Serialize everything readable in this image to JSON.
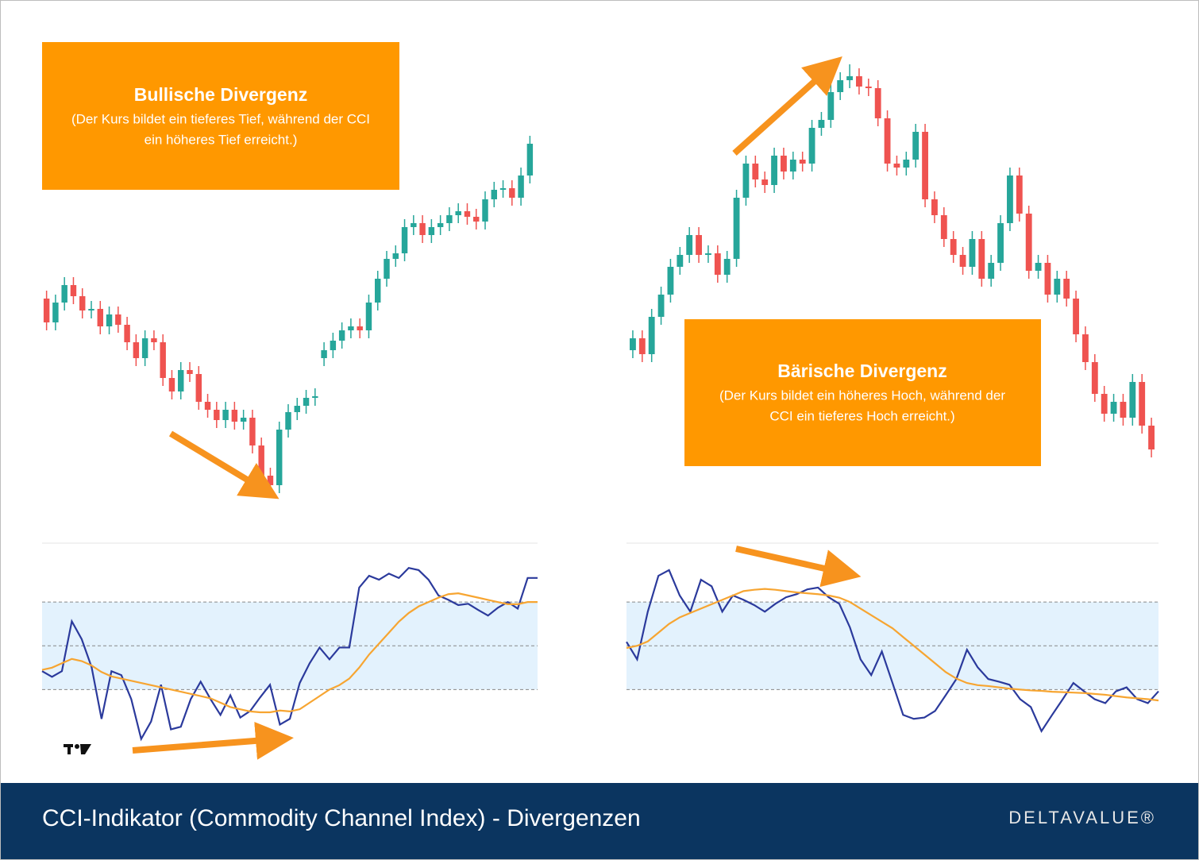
{
  "chart_data": [
    {
      "type": "candlestick",
      "title": "Bullische Divergenz",
      "subtitle_lines": [
        "(Der Kurs bildet ein tieferes Tief, während der CCI",
        "ein höheres Tief erreicht.)"
      ],
      "ylim": [
        0,
        600
      ],
      "up_color": "#26a69a",
      "down_color": "#ef5350",
      "open": [
        265,
        235,
        260,
        282,
        268,
        250,
        252,
        230,
        245,
        232,
        210,
        190,
        215,
        210,
        165,
        148,
        175,
        170,
        135,
        125,
        112,
        125,
        110,
        115,
        80,
        42,
        30,
        100,
        122,
        130,
        140,
        190,
        200,
        212,
        225,
        230,
        225,
        260,
        290,
        315,
        322,
        355,
        360,
        345,
        355,
        360,
        370,
        375,
        368,
        362,
        390,
        402,
        404,
        392,
        420
      ],
      "high": [
        275,
        270,
        292,
        292,
        278,
        262,
        262,
        255,
        255,
        242,
        220,
        225,
        225,
        220,
        175,
        185,
        185,
        180,
        145,
        135,
        135,
        135,
        125,
        125,
        90,
        52,
        110,
        132,
        140,
        150,
        152,
        210,
        222,
        235,
        240,
        240,
        270,
        300,
        325,
        332,
        365,
        370,
        370,
        365,
        370,
        380,
        385,
        385,
        378,
        400,
        412,
        414,
        414,
        430,
        470
      ],
      "low": [
        225,
        225,
        250,
        258,
        240,
        240,
        220,
        220,
        222,
        200,
        180,
        180,
        200,
        155,
        138,
        138,
        160,
        125,
        115,
        102,
        102,
        100,
        100,
        70,
        32,
        20,
        20,
        90,
        112,
        120,
        130,
        180,
        190,
        202,
        215,
        215,
        215,
        250,
        280,
        305,
        312,
        345,
        335,
        335,
        345,
        350,
        360,
        358,
        352,
        352,
        380,
        392,
        382,
        382,
        410
      ],
      "close": [
        235,
        260,
        282,
        268,
        250,
        252,
        230,
        245,
        232,
        210,
        190,
        215,
        210,
        165,
        148,
        175,
        170,
        135,
        125,
        112,
        125,
        110,
        115,
        80,
        42,
        30,
        100,
        122,
        130,
        140,
        142,
        200,
        212,
        225,
        230,
        225,
        260,
        290,
        315,
        322,
        355,
        360,
        345,
        355,
        360,
        370,
        375,
        368,
        362,
        390,
        402,
        404,
        392,
        420,
        460
      ],
      "cci": {
        "ylim": [
          -250,
          240
        ],
        "levels": [
          -100,
          0,
          100
        ],
        "band_color": "#e3f2fd",
        "series": [
          {
            "color": "#2b3a9c",
            "values": [
              -58,
              -71,
              -58,
              56,
              15,
              -49,
              -167,
              -58,
              -67,
              -122,
              -213,
              -173,
              -89,
              -191,
              -185,
              -122,
              -82,
              -122,
              -158,
              -113,
              -164,
              -149,
              -118,
              -89,
              -180,
              -167,
              -85,
              -40,
              -4,
              -31,
              -4,
              -4,
              133,
              160,
              151,
              165,
              155,
              178,
              173,
              151,
              115,
              105,
              93,
              96,
              82,
              69,
              87,
              100,
              85,
              155,
              155
            ]
          },
          {
            "color": "#f7a531",
            "values": [
              -55,
              -50,
              -40,
              -30,
              -35,
              -45,
              -60,
              -70,
              -75,
              -80,
              -85,
              -90,
              -95,
              -100,
              -105,
              -110,
              -115,
              -120,
              -130,
              -140,
              -145,
              -150,
              -152,
              -152,
              -148,
              -150,
              -145,
              -130,
              -115,
              -100,
              -90,
              -75,
              -50,
              -20,
              5,
              30,
              55,
              75,
              90,
              100,
              110,
              118,
              120,
              115,
              110,
              105,
              100,
              95,
              95,
              100,
              100
            ]
          }
        ]
      }
    },
    {
      "type": "candlestick",
      "title": "Bärische Divergenz",
      "subtitle_lines": [
        "(Der Kurs bildet ein höheres Hoch, während der",
        "CCI ein tieferes Hoch erreicht.)"
      ],
      "ylim": [
        0,
        600
      ],
      "up_color": "#26a69a",
      "down_color": "#ef5350",
      "open": [
        200,
        215,
        195,
        242,
        270,
        305,
        320,
        345,
        320,
        322,
        295,
        315,
        392,
        435,
        415,
        408,
        445,
        425,
        440,
        435,
        480,
        490,
        525,
        540,
        545,
        532,
        530,
        492,
        435,
        430,
        440,
        475,
        390,
        370,
        340,
        320,
        305,
        340,
        290,
        310,
        360,
        420,
        372,
        300,
        310,
        270,
        290,
        265,
        220,
        185,
        145,
        120,
        135,
        115,
        160,
        105
      ],
      "high": [
        225,
        225,
        252,
        280,
        315,
        330,
        355,
        355,
        332,
        332,
        325,
        402,
        445,
        445,
        425,
        455,
        455,
        450,
        450,
        490,
        500,
        535,
        550,
        560,
        555,
        542,
        540,
        502,
        445,
        450,
        485,
        485,
        400,
        380,
        350,
        330,
        350,
        350,
        320,
        370,
        430,
        430,
        382,
        320,
        320,
        300,
        300,
        275,
        230,
        195,
        155,
        145,
        145,
        170,
        170,
        115
      ],
      "low": [
        190,
        185,
        185,
        232,
        260,
        295,
        310,
        310,
        310,
        285,
        285,
        305,
        382,
        405,
        398,
        398,
        415,
        415,
        425,
        425,
        470,
        480,
        515,
        530,
        522,
        520,
        482,
        425,
        420,
        420,
        430,
        380,
        360,
        330,
        310,
        295,
        295,
        280,
        280,
        300,
        350,
        362,
        290,
        290,
        260,
        260,
        255,
        210,
        175,
        135,
        110,
        110,
        105,
        105,
        95,
        65
      ],
      "close": [
        215,
        195,
        242,
        270,
        305,
        320,
        345,
        320,
        322,
        295,
        315,
        392,
        435,
        415,
        408,
        445,
        425,
        440,
        435,
        480,
        490,
        525,
        540,
        545,
        532,
        530,
        492,
        435,
        430,
        440,
        475,
        390,
        370,
        340,
        320,
        305,
        340,
        290,
        310,
        360,
        420,
        372,
        300,
        310,
        270,
        290,
        265,
        220,
        185,
        145,
        120,
        135,
        115,
        160,
        105,
        75
      ],
      "cci": {
        "ylim": [
          -250,
          240
        ],
        "levels": [
          -100,
          0,
          100
        ],
        "band_color": "#e3f2fd",
        "series": [
          {
            "color": "#2b3a9c",
            "values": [
              9,
              -31,
              78,
              160,
              173,
              115,
              78,
              151,
              136,
              78,
              115,
              105,
              93,
              78,
              96,
              111,
              118,
              129,
              133,
              111,
              96,
              42,
              -31,
              -67,
              -13,
              -85,
              -158,
              -167,
              -164,
              -149,
              -113,
              -76,
              -9,
              -49,
              -76,
              -82,
              -89,
              -122,
              -140,
              -195,
              -158,
              -122,
              -85,
              -104,
              -122,
              -131,
              -104,
              -95,
              -122,
              -131,
              -104
            ]
          },
          {
            "color": "#f7a531",
            "values": [
              -5,
              0,
              10,
              30,
              50,
              65,
              75,
              85,
              95,
              105,
              115,
              125,
              128,
              130,
              128,
              125,
              122,
              120,
              118,
              115,
              110,
              100,
              85,
              70,
              55,
              40,
              20,
              0,
              -20,
              -40,
              -60,
              -75,
              -85,
              -90,
              -92,
              -95,
              -98,
              -100,
              -102,
              -103,
              -105,
              -106,
              -107,
              -108,
              -110,
              -112,
              -115,
              -118,
              -120,
              -122,
              -125
            ]
          }
        ]
      }
    }
  ],
  "footer": {
    "title": "CCI-Indikator (Commodity Channel Index) - Divergenzen",
    "logo": "DELTAVALUE®"
  }
}
